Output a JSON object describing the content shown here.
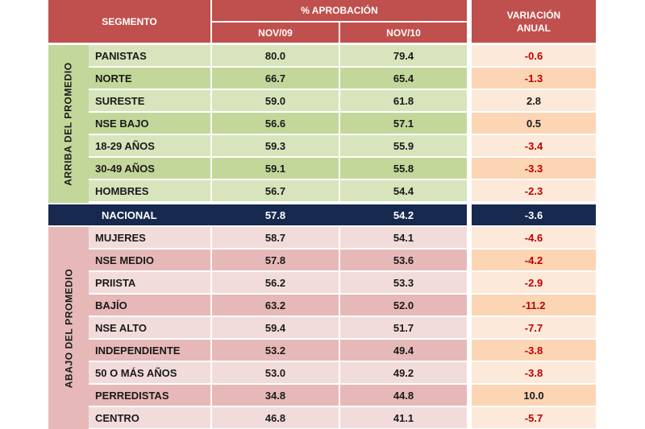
{
  "header": {
    "segmento": "SEGMENTO",
    "aprobacion": "% APROBACIÓN",
    "nov09": "NOV/09",
    "nov10": "NOV/10",
    "variacion_l1": "VARIACIÓN",
    "variacion_l2": "ANUAL"
  },
  "groups": {
    "above": "ARRIBA DEL PROMEDIO",
    "below": "ABAJO DEL  PROMEDIO"
  },
  "rows_above": [
    {
      "segment": "PANISTAS",
      "nov09": "80.0",
      "nov10": "79.4",
      "var": "-0.6"
    },
    {
      "segment": "NORTE",
      "nov09": "66.7",
      "nov10": "65.4",
      "var": "-1.3"
    },
    {
      "segment": "SURESTE",
      "nov09": "59.0",
      "nov10": "61.8",
      "var": "2.8"
    },
    {
      "segment": "NSE BAJO",
      "nov09": "56.6",
      "nov10": "57.1",
      "var": "0.5"
    },
    {
      "segment": "18-29 AÑOS",
      "nov09": "59.3",
      "nov10": "55.9",
      "var": "-3.4"
    },
    {
      "segment": "30-49 AÑOS",
      "nov09": "59.1",
      "nov10": "55.8",
      "var": "-3.3"
    },
    {
      "segment": "HOMBRES",
      "nov09": "56.7",
      "nov10": "54.4",
      "var": "-2.3"
    }
  ],
  "national": {
    "segment": "NACIONAL",
    "nov09": "57.8",
    "nov10": "54.2",
    "var": "-3.6"
  },
  "rows_below": [
    {
      "segment": "MUJERES",
      "nov09": "58.7",
      "nov10": "54.1",
      "var": "-4.6"
    },
    {
      "segment": "NSE MEDIO",
      "nov09": "57.8",
      "nov10": "53.6",
      "var": "-4.2"
    },
    {
      "segment": "PRIISTA",
      "nov09": "56.2",
      "nov10": "53.3",
      "var": "-2.9"
    },
    {
      "segment": "BAJÍO",
      "nov09": "63.2",
      "nov10": "52.0",
      "var": "-11.2"
    },
    {
      "segment": "NSE ALTO",
      "nov09": "59.4",
      "nov10": "51.7",
      "var": "-7.7"
    },
    {
      "segment": "INDEPENDIENTE",
      "nov09": "53.2",
      "nov10": "49.4",
      "var": "-3.8"
    },
    {
      "segment": "50 O MÁS AÑOS",
      "nov09": "53.0",
      "nov10": "49.2",
      "var": "-3.8"
    },
    {
      "segment": "PERREDISTAS",
      "nov09": "34.8",
      "nov10": "44.8",
      "var": "10.0"
    },
    {
      "segment": "CENTRO",
      "nov09": "46.8",
      "nov10": "41.1",
      "var": "-5.7"
    }
  ],
  "colors": {
    "header_red": "#c0504d",
    "green_dark": "#c4d79b",
    "green_light": "#d8e4bc",
    "pink_dark": "#e6b9b8",
    "pink_light": "#f2dcdb",
    "peach_dark": "#fcd5b4",
    "peach_light": "#fde9d9",
    "national_navy": "#17294f",
    "negative_text": "#c00000"
  }
}
